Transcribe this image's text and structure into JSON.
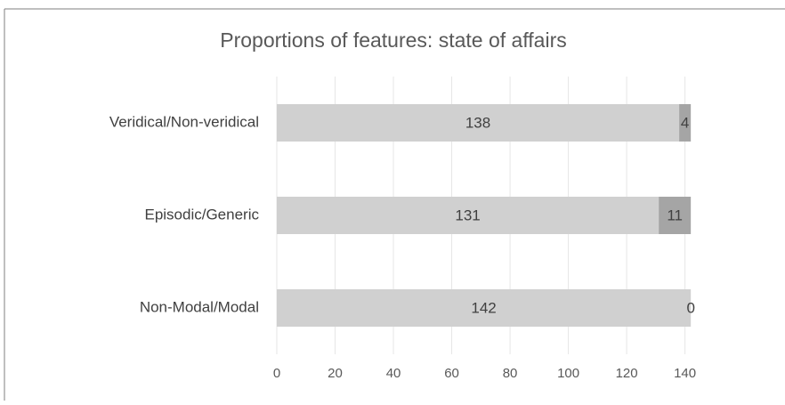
{
  "chart_data": {
    "type": "stacked-bar-horizontal",
    "title": "Proportions of features: state of affairs",
    "categories": [
      "Veridical/Non-veridical",
      "Episodic/Generic",
      "Non-Modal/Modal"
    ],
    "series": [
      {
        "color": "#d0d0d0",
        "values": [
          138,
          131,
          142
        ]
      },
      {
        "color": "#a5a5a5",
        "values": [
          4,
          11,
          0
        ]
      }
    ],
    "xlim": [
      0,
      145
    ],
    "xticks": [
      0,
      20,
      40,
      60,
      80,
      100,
      120,
      140
    ],
    "grid": true
  }
}
